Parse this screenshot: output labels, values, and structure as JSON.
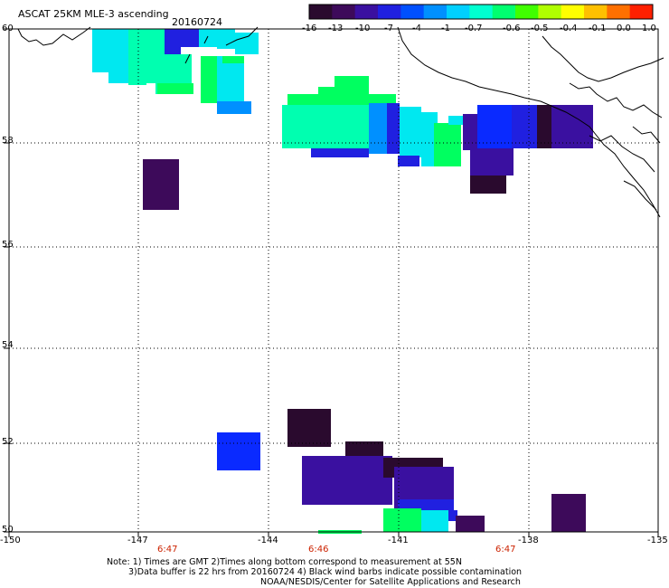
{
  "header": {
    "title": "ASCAT 25KM MLE-3 ascending",
    "date": "20160724"
  },
  "colorbar": {
    "labels": [
      "-16",
      "-13",
      "-10",
      "-7",
      "-4",
      "-1",
      "-0.7",
      "-0.6",
      "-0.5",
      "-0.4",
      "-0.1",
      "0.0",
      "1.0"
    ],
    "colors": [
      "#2a0a2e",
      "#3d0a5a",
      "#3a10a0",
      "#2020e0",
      "#0050ff",
      "#0090ff",
      "#00d0ff",
      "#00ffd0",
      "#00ff70",
      "#40ff00",
      "#b0ff00",
      "#ffff00",
      "#ffc000",
      "#ff7000",
      "#ff2000"
    ]
  },
  "map": {
    "lon_range": [
      -150,
      -135
    ],
    "lat_range": [
      50,
      60
    ],
    "lon_ticks": [
      -150,
      -147,
      -144,
      -141,
      -138,
      -135
    ],
    "lon_tick_labels": [
      "-150",
      "-147",
      "-144",
      "-141",
      "-138",
      "-135"
    ],
    "lat_ticks": [
      50,
      52,
      54,
      56,
      58,
      60
    ],
    "lat_tick_labels": [
      "50",
      "52",
      "54",
      "56",
      "58",
      "60"
    ],
    "grid": true,
    "times": [
      "6:47",
      "6:46",
      "6:47"
    ]
  },
  "notes": {
    "line1": "Note: 1) Times are GMT 2)Times along bottom correspond to measurement at 55N",
    "line2": "3)Data buffer is 22 hrs from 20160724 4) Black wind barbs indicate possible contamination",
    "line3": "NOAA/NESDIS/Center for Satellite Applications and Research"
  }
}
